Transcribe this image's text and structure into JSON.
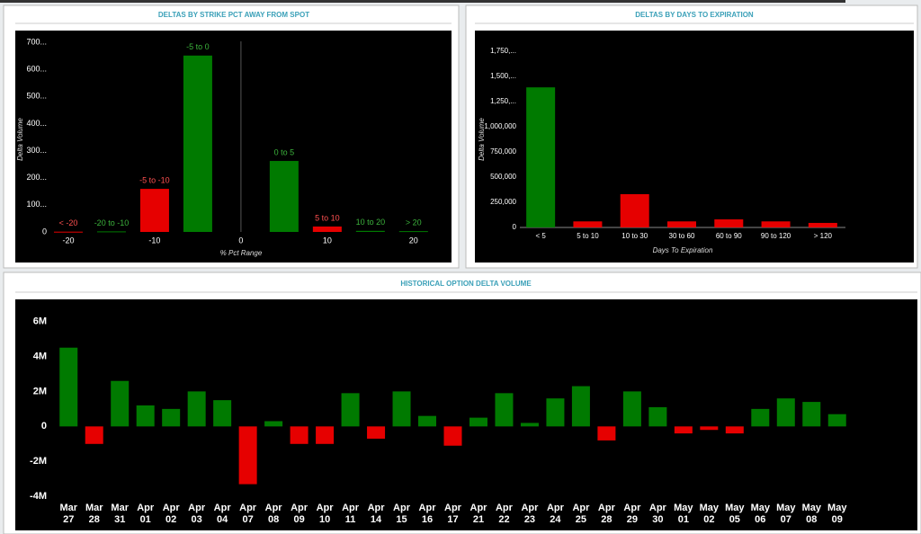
{
  "chart_data": [
    {
      "type": "bar",
      "title": "DELTAS BY STRIKE PCT AWAY FROM SPOT",
      "x_label": "% Pct Range",
      "y_label": "Delta Volume",
      "x": [
        -20,
        -15,
        -10,
        -5,
        5,
        10,
        15,
        20
      ],
      "values": [
        1,
        2,
        159,
        651,
        262,
        20,
        4,
        3
      ],
      "bar_labels": [
        "< -20",
        "-20 to -10",
        "-5 to -10",
        "-5 to 0",
        "0 to 5",
        "5 to 10",
        "10 to 20",
        "> 20"
      ],
      "colors": [
        "#e60000",
        "#007a00",
        "#e60000",
        "#007a00",
        "#007a00",
        "#e60000",
        "#007a00",
        "#007a00"
      ],
      "xlim": [
        -25,
        24.5
      ],
      "xticks": [
        -20,
        -10,
        0,
        10,
        20
      ],
      "x_reference_line": 0,
      "ylim": [
        0,
        730
      ],
      "yticks": [
        0,
        {
          "value": 100,
          "label": "100..."
        },
        {
          "value": 200,
          "label": "200..."
        },
        {
          "value": 300,
          "label": "300..."
        },
        {
          "value": 400,
          "label": "400..."
        },
        {
          "value": 500,
          "label": "500..."
        },
        {
          "value": 600,
          "label": "600..."
        },
        {
          "value": 700,
          "label": "700..."
        }
      ]
    },
    {
      "type": "bar",
      "title": "DELTAS BY DAYS TO EXPIRATION",
      "x_label": "Days To Expiration",
      "y_label": "Delta Volume",
      "categories": [
        "< 5",
        "5 to 10",
        "10 to 30",
        "30 to 60",
        "60 to 90",
        "90 to 120",
        "> 120"
      ],
      "values": [
        1390000,
        60000,
        330000,
        60000,
        80000,
        60000,
        45000
      ],
      "colors": [
        "#007a00",
        "#e60000",
        "#e60000",
        "#e60000",
        "#e60000",
        "#e60000",
        "#e60000"
      ],
      "ylim": [
        0,
        1900000
      ],
      "yticks": [
        0,
        {
          "value": 250000,
          "label": "250,000"
        },
        {
          "value": 500000,
          "label": "500,000"
        },
        {
          "value": 750000,
          "label": "750,000"
        },
        {
          "value": 1000000,
          "label": "1,000,000"
        },
        {
          "value": 1250000,
          "label": "1,250,..."
        },
        {
          "value": 1500000,
          "label": "1,500,..."
        },
        {
          "value": 1750000,
          "label": "1,750,..."
        }
      ]
    },
    {
      "type": "bar",
      "title": "HISTORICAL OPTION DELTA VOLUME",
      "categories": [
        "Mar 27",
        "Mar 28",
        "Mar 31",
        "Apr 01",
        "Apr 02",
        "Apr 03",
        "Apr 04",
        "Apr 07",
        "Apr 08",
        "Apr 09",
        "Apr 10",
        "Apr 11",
        "Apr 14",
        "Apr 15",
        "Apr 16",
        "Apr 17",
        "Apr 21",
        "Apr 22",
        "Apr 23",
        "Apr 24",
        "Apr 25",
        "Apr 28",
        "Apr 29",
        "Apr 30",
        "May 01",
        "May 02",
        "May 05",
        "May 06",
        "May 07",
        "May 08",
        "May 09"
      ],
      "values": [
        4500000,
        -1000000,
        2600000,
        1200000,
        1000000,
        2000000,
        1500000,
        -3300000,
        300000,
        -1000000,
        -1000000,
        1900000,
        -700000,
        2000000,
        600000,
        -1100000,
        500000,
        1900000,
        200000,
        1600000,
        2300000,
        -800000,
        2000000,
        1100000,
        -400000,
        -200000,
        -400000,
        1000000,
        1600000,
        1400000,
        700000
      ],
      "positive_color": "#007a00",
      "negative_color": "#e60000",
      "ylim": [
        -4400000,
        6900000
      ],
      "yticks": [
        {
          "value": -4000000,
          "label": "-4M"
        },
        {
          "value": -2000000,
          "label": "-2M"
        },
        0,
        {
          "value": 2000000,
          "label": "2M"
        },
        {
          "value": 4000000,
          "label": "4M"
        },
        {
          "value": 6000000,
          "label": "6M"
        }
      ]
    }
  ]
}
